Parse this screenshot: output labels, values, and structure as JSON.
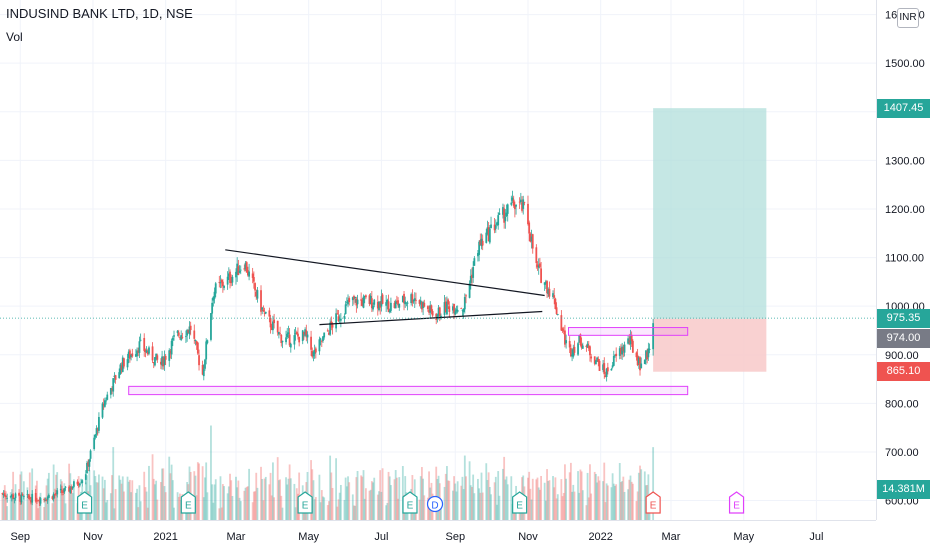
{
  "header": {
    "title": "INDUSIND BANK LTD, 1D, NSE",
    "volume_label": "Vol",
    "currency": "INR"
  },
  "colors": {
    "up": "#26a69a",
    "down": "#ef5350",
    "zone": "#e040fb",
    "target_fill": "#b2dfdb",
    "stop_fill": "#f8c9c9",
    "current_price_tag": "#26a69a",
    "entry_tag": "#787b86",
    "stop_tag": "#ef5350",
    "volume_tag": "#26a69a"
  },
  "chart_data": {
    "type": "candlestick",
    "title": "INDUSIND BANK LTD, 1D, NSE",
    "y_axis": {
      "ticks": [
        600,
        700,
        800,
        900,
        1000,
        1100,
        1200,
        1300,
        1400,
        1500,
        1600
      ],
      "tick_labels": [
        "600.00",
        "700.00",
        "800.00",
        "900.00",
        "1000.00",
        "1100.00",
        "1200.00",
        "1300.00",
        "1400.00",
        "1500.00",
        "1600.00"
      ],
      "range": [
        560,
        1630
      ]
    },
    "x_axis": {
      "tick_labels": [
        "Sep",
        "Nov",
        "2021",
        "Mar",
        "May",
        "Jul",
        "Sep",
        "Nov",
        "2022",
        "Mar",
        "May",
        "Jul"
      ],
      "start": "2020-08-15",
      "end": "2022-08-20"
    },
    "price_path": [
      [
        "2020-08-15",
        615
      ],
      [
        "2020-09-01",
        605
      ],
      [
        "2020-09-20",
        605
      ],
      [
        "2020-10-10",
        620
      ],
      [
        "2020-10-25",
        650
      ],
      [
        "2020-11-10",
        800
      ],
      [
        "2020-11-25",
        880
      ],
      [
        "2020-12-10",
        920
      ],
      [
        "2020-12-28",
        880
      ],
      [
        "2021-01-10",
        940
      ],
      [
        "2021-01-22",
        955
      ],
      [
        "2021-02-01",
        860
      ],
      [
        "2021-02-10",
        1030
      ],
      [
        "2021-02-25",
        1060
      ],
      [
        "2021-03-08",
        1090
      ],
      [
        "2021-03-25",
        980
      ],
      [
        "2021-04-10",
        930
      ],
      [
        "2021-04-28",
        940
      ],
      [
        "2021-05-05",
        900
      ],
      [
        "2021-05-20",
        960
      ],
      [
        "2021-06-05",
        1010
      ],
      [
        "2021-06-25",
        1010
      ],
      [
        "2021-07-10",
        1000
      ],
      [
        "2021-07-28",
        1020
      ],
      [
        "2021-08-15",
        980
      ],
      [
        "2021-08-25",
        1000
      ],
      [
        "2021-09-08",
        1000
      ],
      [
        "2021-09-20",
        1120
      ],
      [
        "2021-10-05",
        1170
      ],
      [
        "2021-10-20",
        1210
      ],
      [
        "2021-10-30",
        1200
      ],
      [
        "2021-11-08",
        1080
      ],
      [
        "2021-11-22",
        1020
      ],
      [
        "2021-12-05",
        905
      ],
      [
        "2021-12-15",
        930
      ],
      [
        "2021-12-28",
        890
      ],
      [
        "2022-01-05",
        860
      ],
      [
        "2022-01-15",
        900
      ],
      [
        "2022-01-25",
        930
      ],
      [
        "2022-02-03",
        880
      ],
      [
        "2022-02-10",
        905
      ],
      [
        "2022-02-14",
        975
      ]
    ],
    "volume": {
      "last_value": "14.381M",
      "note": "volume bars shown at the bottom of the pane"
    },
    "annotations": {
      "triangle_upper_line": {
        "from": [
          "2021-02-20",
          1116
        ],
        "to": [
          "2021-11-15",
          1022
        ]
      },
      "triangle_lower_line": {
        "from": [
          "2021-05-10",
          962
        ],
        "to": [
          "2021-11-13",
          989
        ]
      },
      "support_zone": {
        "from": "2020-12-01",
        "to": "2022-03-15",
        "low": 818,
        "high": 835
      },
      "resistance_zone": {
        "from": "2021-12-05",
        "to": "2022-03-15",
        "low": 940,
        "high": 956
      },
      "long_position": {
        "from": "2022-02-14",
        "to": "2022-05-20",
        "entry": 974.0,
        "target": 1407.45,
        "stop": 865.1
      }
    },
    "price_labels": [
      {
        "label": "1407.45",
        "value": 1407.45,
        "color_key": "current_price_tag"
      },
      {
        "label": "975.35",
        "value": 975.35,
        "color_key": "current_price_tag"
      },
      {
        "label": "974.00",
        "value": 974.0,
        "color_key": "entry_tag"
      },
      {
        "label": "865.10",
        "value": 865.1,
        "color_key": "stop_tag"
      }
    ],
    "events": [
      {
        "type": "E",
        "date": "2020-10-25",
        "state": "past"
      },
      {
        "type": "E",
        "date": "2021-01-20",
        "state": "past"
      },
      {
        "type": "E",
        "date": "2021-04-28",
        "state": "past"
      },
      {
        "type": "E",
        "date": "2021-07-25",
        "state": "past"
      },
      {
        "type": "D",
        "date": "2021-08-15",
        "state": "past"
      },
      {
        "type": "E",
        "date": "2021-10-25",
        "state": "past"
      },
      {
        "type": "E",
        "date": "2022-02-14",
        "state": "recent"
      },
      {
        "type": "E",
        "date": "2022-04-25",
        "state": "future"
      }
    ]
  }
}
